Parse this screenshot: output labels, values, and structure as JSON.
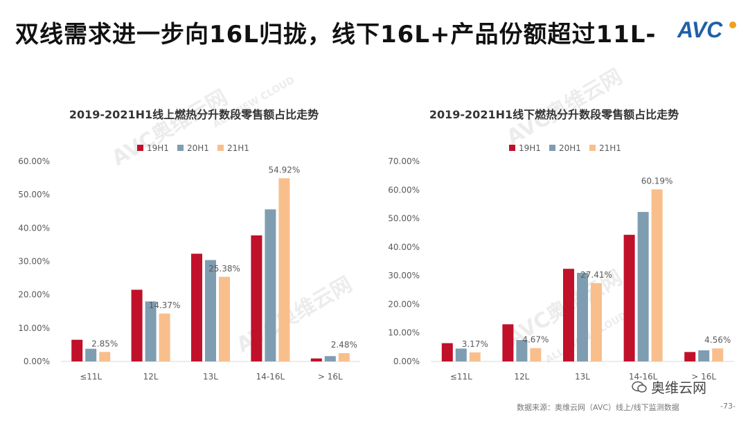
{
  "header": {
    "title": "双线需求进一步向16L归拢，线下16L+产品份额超过11L-",
    "logo_text": "AVC"
  },
  "watermarks": [
    "AVC奥维云网",
    "ALL VIEW CLOUD"
  ],
  "colors": {
    "series_19H1": "#c0102a",
    "series_20H1": "#7f9db1",
    "series_21H1": "#f8bf8c",
    "logo_blue": "#1f5fa8",
    "logo_orange": "#f0a020"
  },
  "chart_data": [
    {
      "type": "bar",
      "title": "2019-2021H1线上燃热分升数段零售额占比走势",
      "categories": [
        "≤11L",
        "12L",
        "13L",
        "14-16L",
        "> 16L"
      ],
      "series": [
        {
          "name": "19H1",
          "values": [
            6.5,
            21.5,
            32.3,
            37.8,
            0.9
          ]
        },
        {
          "name": "20H1",
          "values": [
            3.8,
            18.0,
            30.4,
            45.6,
            1.6
          ]
        },
        {
          "name": "21H1",
          "values": [
            2.85,
            14.37,
            25.38,
            54.92,
            2.48
          ]
        }
      ],
      "data_labels": [
        "2.85%",
        "14.37%",
        "25.38%",
        "54.92%",
        "2.48%"
      ],
      "yticks": [
        "0.00%",
        "10.00%",
        "20.00%",
        "30.00%",
        "40.00%",
        "50.00%",
        "60.00%"
      ],
      "ylim": [
        0,
        60
      ],
      "xlabel": "",
      "ylabel": "",
      "legend": "top-center"
    },
    {
      "type": "bar",
      "title": "2019-2021H1线下燃热分升数段零售额占比走势",
      "categories": [
        "≤11L",
        "12L",
        "13L",
        "14-16L",
        "> 16L"
      ],
      "series": [
        {
          "name": "19H1",
          "values": [
            6.4,
            13.0,
            32.4,
            44.3,
            3.3
          ]
        },
        {
          "name": "20H1",
          "values": [
            4.5,
            7.5,
            31.0,
            52.3,
            3.9
          ]
        },
        {
          "name": "21H1",
          "values": [
            3.17,
            4.67,
            27.41,
            60.19,
            4.56
          ]
        }
      ],
      "data_labels": [
        "3.17%",
        "4.67%",
        "27.41%",
        "60.19%",
        "4.56%"
      ],
      "yticks": [
        "0.00%",
        "10.00%",
        "20.00%",
        "30.00%",
        "40.00%",
        "50.00%",
        "60.00%",
        "70.00%"
      ],
      "ylim": [
        0,
        70
      ],
      "xlabel": "",
      "ylabel": "",
      "legend": "top-center"
    }
  ],
  "footer": {
    "source": "数据来源：奥维云网（AVC）线上/线下监测数据",
    "page": "-73-",
    "wechat_label": "奥维云网"
  }
}
